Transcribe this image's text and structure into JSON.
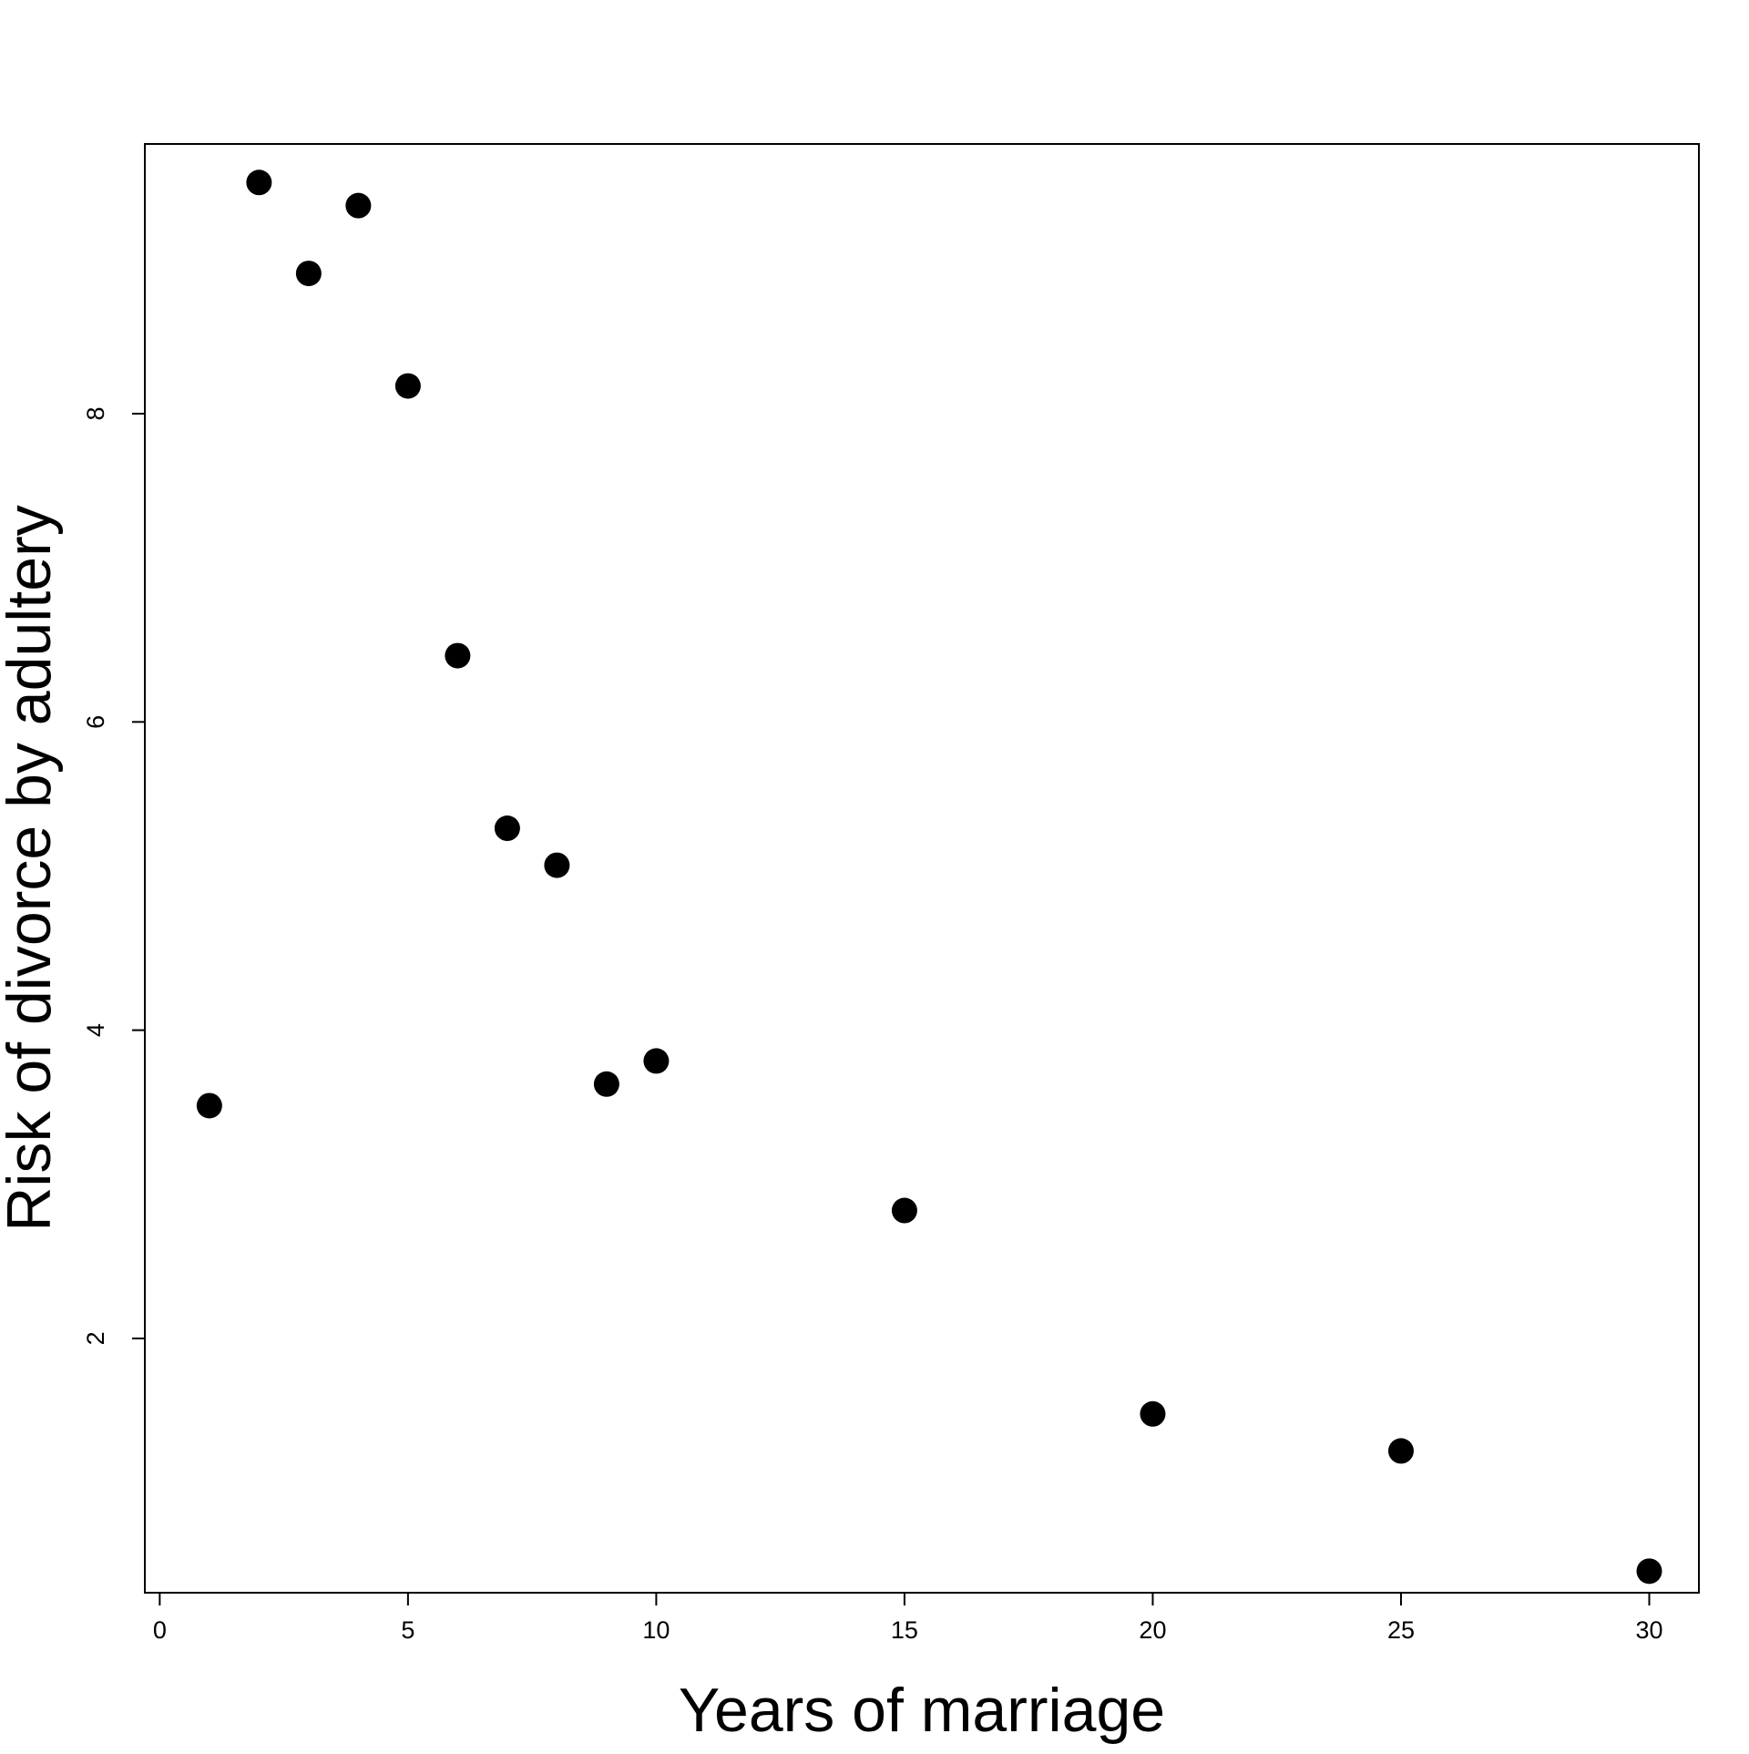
{
  "chart_data": {
    "type": "scatter",
    "title": "",
    "xlabel": "Years of marriage",
    "ylabel": "Risk of divorce by adultery",
    "xlim": [
      -0.3,
      31.0
    ],
    "ylim": [
      0.35,
      9.75
    ],
    "x_ticks": [
      0,
      5,
      10,
      15,
      20,
      25,
      30
    ],
    "y_ticks": [
      2,
      4,
      6,
      8
    ],
    "x_tick_labels": [
      "0",
      "5",
      "10",
      "15",
      "20",
      "25",
      "30"
    ],
    "y_tick_labels": [
      "2",
      "4",
      "6",
      "8"
    ],
    "grid": false,
    "legend": "none",
    "series": [
      {
        "color": "#000000",
        "points": [
          {
            "x": 1,
            "y": 3.51
          },
          {
            "x": 2,
            "y": 9.5
          },
          {
            "x": 3,
            "y": 8.91
          },
          {
            "x": 4,
            "y": 9.35
          },
          {
            "x": 5,
            "y": 8.18
          },
          {
            "x": 6,
            "y": 6.43
          },
          {
            "x": 7,
            "y": 5.31
          },
          {
            "x": 8,
            "y": 5.07
          },
          {
            "x": 9,
            "y": 3.65
          },
          {
            "x": 10,
            "y": 3.8
          },
          {
            "x": 15,
            "y": 2.83
          },
          {
            "x": 20,
            "y": 1.51
          },
          {
            "x": 25,
            "y": 1.27
          },
          {
            "x": 30,
            "y": 0.49
          }
        ]
      }
    ]
  }
}
